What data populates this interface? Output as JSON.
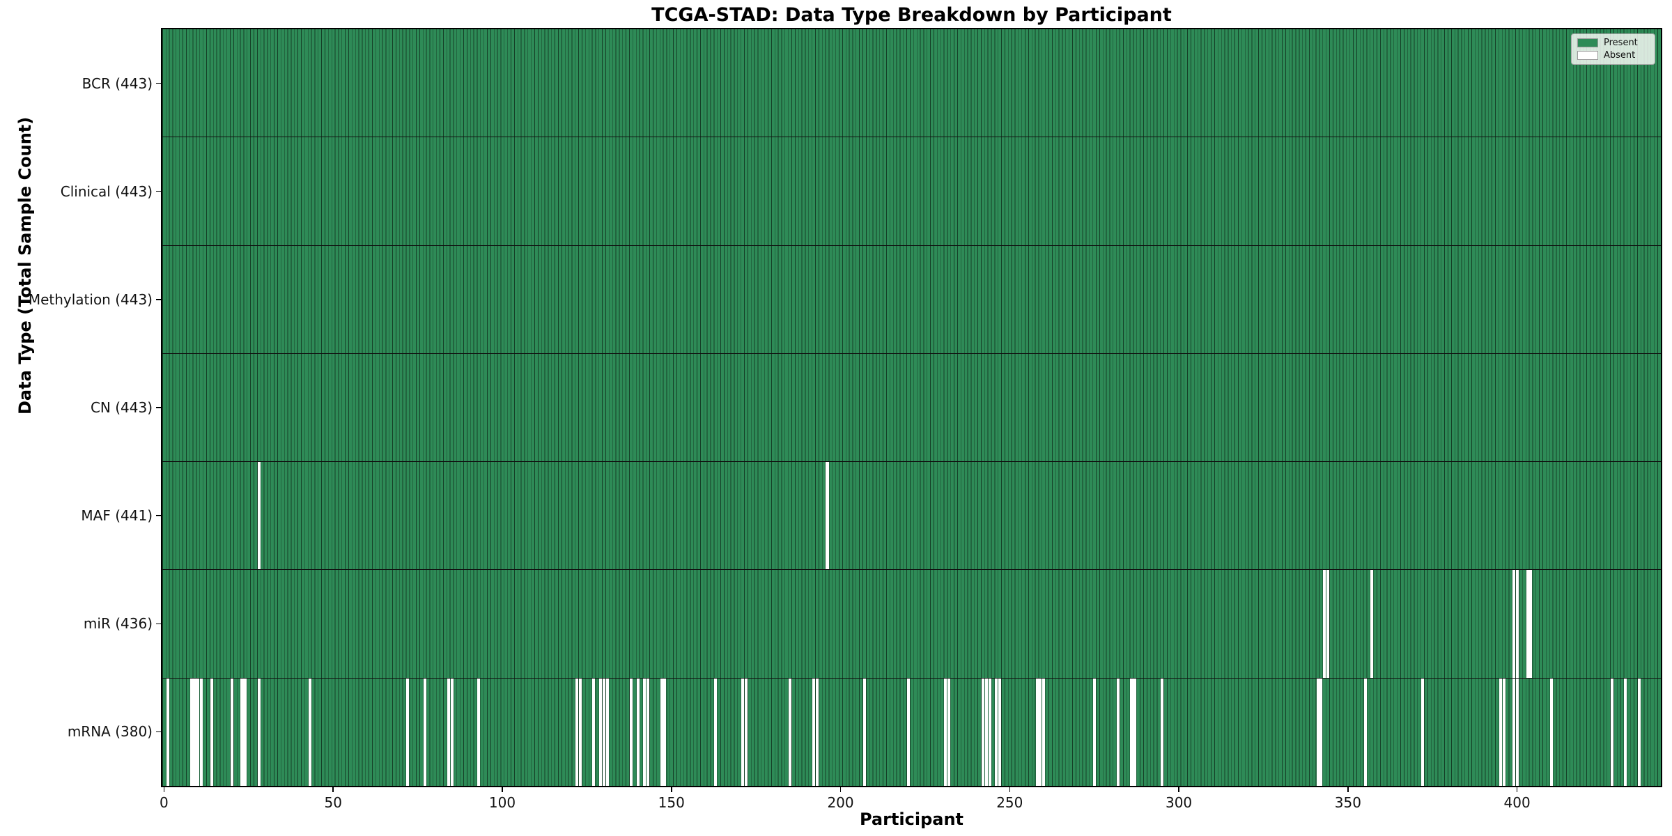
{
  "chart_data": {
    "type": "heatmap",
    "title": "TCGA-STAD: Data Type Breakdown by Participant",
    "xlabel": "Participant",
    "ylabel": "Data Type (Total Sample Count)",
    "n_participants": 443,
    "xlim": [
      0,
      443
    ],
    "x_ticks": [
      0,
      50,
      100,
      150,
      200,
      250,
      300,
      350,
      400
    ],
    "grid": false,
    "legend_position": "upper right",
    "legend": [
      {
        "label": "Present",
        "color": "#2e8b57"
      },
      {
        "label": "Absent",
        "color": "#ffffff"
      }
    ],
    "colors": {
      "present": "#2e8b57",
      "absent": "#ffffff",
      "cell_edge": "rgba(0,0,0,0.55)",
      "row_divider": "#101010"
    },
    "rows": [
      {
        "label": "BCR (443)",
        "total": 443,
        "absent": []
      },
      {
        "label": "Clinical (443)",
        "total": 443,
        "absent": []
      },
      {
        "label": "Methylation (443)",
        "total": 443,
        "absent": []
      },
      {
        "label": "CN (443)",
        "total": 443,
        "absent": []
      },
      {
        "label": "MAF (441)",
        "total": 441,
        "absent": [
          28,
          196
        ]
      },
      {
        "label": "miR (436)",
        "total": 436,
        "absent": [
          343,
          344,
          357,
          399,
          400,
          403,
          404
        ]
      },
      {
        "label": "mRNA (380)",
        "total": 380,
        "absent": [
          1,
          8,
          9,
          10,
          11,
          14,
          20,
          23,
          24,
          28,
          43,
          72,
          77,
          84,
          85,
          93,
          122,
          123,
          127,
          129,
          130,
          131,
          138,
          140,
          142,
          143,
          147,
          148,
          163,
          171,
          172,
          185,
          192,
          193,
          207,
          220,
          231,
          232,
          242,
          243,
          244,
          246,
          247,
          258,
          259,
          260,
          275,
          282,
          286,
          287,
          295,
          341,
          342,
          355,
          372,
          395,
          396,
          399,
          400,
          410,
          428,
          432,
          436
        ]
      }
    ]
  }
}
